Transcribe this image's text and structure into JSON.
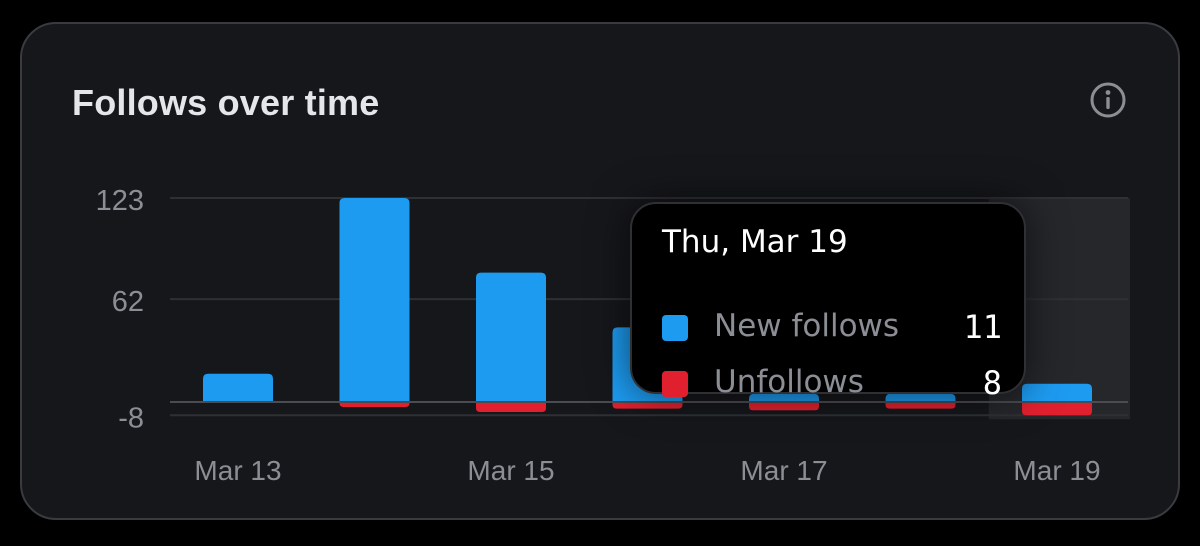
{
  "colors": {
    "background": "#16171b",
    "new_follows": "#1d9bf0",
    "unfollows": "#e0202f",
    "axis_text": "#8b8e94",
    "gridline": "#2e3035",
    "zero_line": "#4a4c52",
    "hover_band": "#26272b"
  },
  "card": {
    "title": "Follows over time",
    "info_icon": "info-icon"
  },
  "tooltip": {
    "date": "Thu, Mar 19",
    "rows": [
      {
        "label": "New follows",
        "value": "11"
      },
      {
        "label": "Unfollows",
        "value": "8"
      }
    ]
  },
  "chart_data": {
    "type": "bar",
    "stacking": "diverging",
    "categories": [
      "Mar 13",
      "Mar 14",
      "Mar 15",
      "Mar 16",
      "Mar 17",
      "Mar 18",
      "Mar 19"
    ],
    "x_tick_labels": [
      "Mar 13",
      "Mar 15",
      "Mar 17",
      "Mar 19"
    ],
    "y_tick_labels": [
      "123",
      "62",
      "-8"
    ],
    "ylim": [
      -8,
      123
    ],
    "y_ticks": [
      123,
      62,
      -8
    ],
    "grid": true,
    "highlighted_category": "Mar 19",
    "series": [
      {
        "name": "New follows",
        "values": [
          17,
          123,
          78,
          45,
          5,
          5,
          11
        ]
      },
      {
        "name": "Unfollows",
        "values": [
          0,
          -3,
          -6,
          -4,
          -5,
          -4,
          -8
        ]
      }
    ]
  }
}
